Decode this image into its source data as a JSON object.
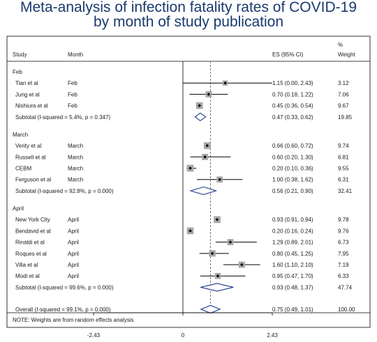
{
  "title_line1": "Meta-analysis of infection fatality rates of COVID-19",
  "title_line2": "by month of study publication",
  "headers": {
    "study": "Study",
    "month": "Month",
    "es": "ES (95% CI)",
    "weight_symbol": "%",
    "weight": "Weight"
  },
  "note": "NOTE: Weights are from random effects analysis",
  "colors": {
    "title": "#1a3a6e",
    "diamond": "#1a3a8e",
    "box": "#a8a8a8",
    "line": "#000000"
  },
  "chart_data": {
    "type": "forest",
    "x_ticks": [
      -2.43,
      0,
      2.43
    ],
    "x_tick_labels": [
      "-2.43",
      "0",
      "2.43"
    ],
    "null_line": 0,
    "overall_reference_line": 0.75,
    "groups": [
      {
        "label": "Feb",
        "studies": [
          {
            "study": "Tian et al",
            "month": "Feb",
            "es": 1.15,
            "lo": 0.0,
            "hi": 2.43,
            "es_text": "1.15 (0.00, 2.43)",
            "weight": "3.12"
          },
          {
            "study": "Jung et al",
            "month": "Feb",
            "es": 0.7,
            "lo": 0.18,
            "hi": 1.22,
            "es_text": "0.70 (0.18, 1.22)",
            "weight": "7.06"
          },
          {
            "study": "Nishiura et al",
            "month": "Feb",
            "es": 0.45,
            "lo": 0.36,
            "hi": 0.54,
            "es_text": "0.45 (0.36, 0.54)",
            "weight": "9.67"
          }
        ],
        "subtotal": {
          "label": "Subtotal  (I-squared = 5.4%, p = 0.347)",
          "es": 0.47,
          "lo": 0.33,
          "hi": 0.62,
          "es_text": "0.47 (0.33, 0.62)",
          "weight": "19.85"
        }
      },
      {
        "label": "March",
        "studies": [
          {
            "study": "Verity et al",
            "month": "March",
            "es": 0.66,
            "lo": 0.6,
            "hi": 0.72,
            "es_text": "0.66 (0.60, 0.72)",
            "weight": "9.74"
          },
          {
            "study": "Russell et al",
            "month": "March",
            "es": 0.6,
            "lo": 0.2,
            "hi": 1.3,
            "es_text": "0.60 (0.20, 1.30)",
            "weight": "6.81"
          },
          {
            "study": "CEBM",
            "month": "March",
            "es": 0.2,
            "lo": 0.1,
            "hi": 0.36,
            "es_text": "0.20 (0.10, 0.36)",
            "weight": "9.55"
          },
          {
            "study": "Ferguson et al",
            "month": "March",
            "es": 1.0,
            "lo": 0.38,
            "hi": 1.62,
            "es_text": "1.00 (0.38, 1.62)",
            "weight": "6.31"
          }
        ],
        "subtotal": {
          "label": "Subtotal  (I-squared = 92.8%, p = 0.000)",
          "es": 0.56,
          "lo": 0.21,
          "hi": 0.9,
          "es_text": "0.56 (0.21, 0.90)",
          "weight": "32.41"
        }
      },
      {
        "label": "April",
        "studies": [
          {
            "study": "New York City",
            "month": "April",
            "es": 0.93,
            "lo": 0.91,
            "hi": 0.94,
            "es_text": "0.93 (0.91, 0.94)",
            "weight": "9.78"
          },
          {
            "study": "Bendavid et al",
            "month": "April",
            "es": 0.2,
            "lo": 0.16,
            "hi": 0.24,
            "es_text": "0.20 (0.16, 0.24)",
            "weight": "9.76"
          },
          {
            "study": "Rinaldi et al",
            "month": "April",
            "es": 1.29,
            "lo": 0.89,
            "hi": 2.01,
            "es_text": "1.29 (0.89, 2.01)",
            "weight": "6.73"
          },
          {
            "study": "Roques et al",
            "month": "April",
            "es": 0.8,
            "lo": 0.45,
            "hi": 1.25,
            "es_text": "0.80 (0.45, 1.25)",
            "weight": "7.95"
          },
          {
            "study": "Villa et al",
            "month": "April",
            "es": 1.6,
            "lo": 1.1,
            "hi": 2.1,
            "es_text": "1.60 (1.10, 2.10)",
            "weight": "7.19"
          },
          {
            "study": "Modi et al",
            "month": "April",
            "es": 0.95,
            "lo": 0.47,
            "hi": 1.7,
            "es_text": "0.95 (0.47, 1.70)",
            "weight": "6.33"
          }
        ],
        "subtotal": {
          "label": "Subtotal  (I-squared = 99.6%, p = 0.000)",
          "es": 0.93,
          "lo": 0.48,
          "hi": 1.37,
          "es_text": "0.93 (0.48, 1.37)",
          "weight": "47.74"
        }
      }
    ],
    "overall": {
      "label": "Overall  (I-squared = 99.1%, p = 0.000)",
      "es": 0.75,
      "lo": 0.49,
      "hi": 1.01,
      "es_text": "0.75 (0.49, 1.01)",
      "weight": "100.00"
    }
  }
}
